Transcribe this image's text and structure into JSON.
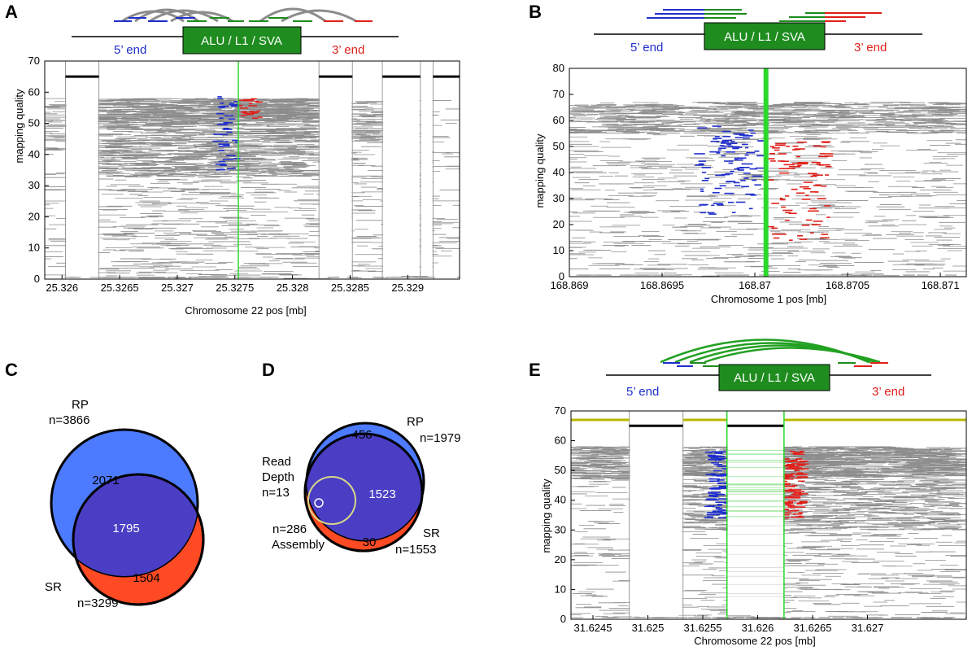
{
  "colors": {
    "read": "#8c8c8c",
    "five_prime": "#1f2ecc",
    "three_prime": "#e0201a",
    "element_green": "#1e8c1e",
    "insertion_line": "#2bd92b",
    "arc_gray": "#8c8c8c",
    "arc_green": "#22a022",
    "venn_rp": "#4d7bff",
    "venn_overlap": "#4a3ec4",
    "venn_sr": "#ff4a23",
    "read_depth_circle": "#d8d888",
    "gap_black": "#000000",
    "gap_yellow": "#b8b800"
  },
  "schematic": {
    "element_label": "ALU / L1 / SVA",
    "five_prime_label": "5’ end",
    "three_prime_label": "3’ end"
  },
  "chart_data": [
    {
      "panel": "A",
      "type": "scatter",
      "xlabel": "Chromosome 22 pos [mb]",
      "ylabel": "mapping quality",
      "xlim": [
        25.32585,
        25.32945
      ],
      "ylim": [
        0,
        70
      ],
      "xticks": [
        "25.326",
        "25.3265",
        "25.327",
        "25.3275",
        "25.328",
        "25.3285",
        "25.329"
      ],
      "xtick_values": [
        25.326,
        25.3265,
        25.327,
        25.3275,
        25.328,
        25.3285,
        25.329
      ],
      "yticks": [
        "0",
        "10",
        "20",
        "30",
        "40",
        "50",
        "60",
        "70"
      ],
      "ytick_values": [
        0,
        10,
        20,
        30,
        40,
        50,
        60,
        70
      ],
      "insertion_x": 25.32753,
      "gap_lines_x": [
        25.32603,
        25.32632,
        25.32823,
        25.32852,
        25.32878,
        25.32911,
        25.32922
      ],
      "gap_bars": [
        [
          25.32632,
          25.32603,
          65
        ],
        [
          25.32823,
          25.32852,
          65
        ],
        [
          25.32878,
          25.32911,
          65
        ],
        [
          25.32922,
          25.32945,
          65
        ]
      ],
      "arcs": "gray",
      "clusters": [
        {
          "x": [
            25.32585,
            25.32603
          ],
          "y": [
            40,
            58
          ],
          "d": 0.45,
          "c": "read"
        },
        {
          "x": [
            25.32632,
            25.32823
          ],
          "y": [
            51,
            58
          ],
          "d": 1.6,
          "c": "read"
        },
        {
          "x": [
            25.32632,
            25.32823
          ],
          "y": [
            33,
            51
          ],
          "d": 0.8,
          "c": "read"
        },
        {
          "x": [
            25.32632,
            25.32823
          ],
          "y": [
            0,
            33
          ],
          "d": 0.18,
          "c": "read"
        },
        {
          "x": [
            25.32585,
            25.32603
          ],
          "y": [
            0,
            40
          ],
          "d": 0.12,
          "c": "read"
        },
        {
          "x": [
            25.32823,
            25.32945
          ],
          "y": [
            0,
            58
          ],
          "d": 0.12,
          "c": "read"
        },
        {
          "x": [
            25.32852,
            25.32878
          ],
          "y": [
            44,
            57
          ],
          "d": 0.6,
          "c": "read"
        },
        {
          "x": [
            25.32735,
            25.32752
          ],
          "y": [
            35,
            59
          ],
          "d": 0.35,
          "c": "five_prime"
        },
        {
          "x": [
            25.32754,
            25.32772
          ],
          "y": [
            51,
            58
          ],
          "d": 0.6,
          "c": "three_prime"
        }
      ]
    },
    {
      "panel": "B",
      "type": "scatter",
      "xlabel": "Chromosome 1 pos [mb]",
      "ylabel": "mapping quality",
      "xlim": [
        168.869,
        168.87114
      ],
      "ylim": [
        0,
        80
      ],
      "xticks": [
        "168.869",
        "168.8695",
        "168.87",
        "168.8705",
        "168.871"
      ],
      "xtick_values": [
        168.869,
        168.8695,
        168.87,
        168.8705,
        168.871
      ],
      "yticks": [
        "0",
        "10",
        "20",
        "30",
        "40",
        "50",
        "60",
        "70",
        "80"
      ],
      "ytick_values": [
        0,
        10,
        20,
        30,
        40,
        50,
        60,
        70,
        80
      ],
      "insertion_x": 168.87006,
      "clusters": [
        {
          "x": [
            168.869,
            168.87114
          ],
          "y": [
            55,
            67
          ],
          "d": 0.7,
          "c": "read"
        },
        {
          "x": [
            168.869,
            168.87114
          ],
          "y": [
            0,
            55
          ],
          "d": 0.12,
          "c": "read"
        },
        {
          "x": [
            168.8697,
            168.87004
          ],
          "y": [
            24,
            58
          ],
          "d": 0.22,
          "c": "five_prime"
        },
        {
          "x": [
            168.87008,
            168.8704
          ],
          "y": [
            14,
            52
          ],
          "d": 0.18,
          "c": "three_prime"
        }
      ]
    },
    {
      "panel": "E",
      "type": "scatter",
      "xlabel": "Chromosome 22 pos [mb]",
      "ylabel": "mapping quality",
      "xlim": [
        31.6243,
        31.6279
      ],
      "ylim": [
        0,
        70
      ],
      "xticks": [
        "31.6245",
        "31.625",
        "31.6255",
        "31.626",
        "31.6265",
        "31.627"
      ],
      "xtick_values": [
        31.6245,
        31.625,
        31.6255,
        31.626,
        31.6265,
        31.627
      ],
      "yticks": [
        "0",
        "10",
        "20",
        "30",
        "40",
        "50",
        "60",
        "70"
      ],
      "ytick_values": [
        0,
        10,
        20,
        30,
        40,
        50,
        60,
        70
      ],
      "insertion_x": [
        31.62572,
        31.62624
      ],
      "gap_lines_x": [
        31.62483,
        31.62532,
        31.62572,
        31.62624
      ],
      "arcs": "green",
      "clusters": [
        {
          "x": [
            31.6243,
            31.62483
          ],
          "y": [
            47,
            58
          ],
          "d": 1.2,
          "c": "read"
        },
        {
          "x": [
            31.62532,
            31.6279
          ],
          "y": [
            48,
            58
          ],
          "d": 1.4,
          "c": "read"
        },
        {
          "x": [
            31.62532,
            31.6279
          ],
          "y": [
            30,
            48
          ],
          "d": 0.55,
          "c": "read"
        },
        {
          "x": [
            31.62532,
            31.6279
          ],
          "y": [
            0,
            30
          ],
          "d": 0.15,
          "c": "read"
        },
        {
          "x": [
            31.6243,
            31.62483
          ],
          "y": [
            0,
            47
          ],
          "d": 0.12,
          "c": "read"
        },
        {
          "x": [
            31.62555,
            31.62572
          ],
          "y": [
            34,
            57
          ],
          "d": 0.9,
          "c": "five_prime"
        },
        {
          "x": [
            31.62624,
            31.62643
          ],
          "y": [
            34,
            57
          ],
          "d": 0.9,
          "c": "three_prime"
        }
      ]
    }
  ],
  "venn": [
    {
      "panel": "C",
      "type": "venn",
      "sets": [
        {
          "name": "RP",
          "n_label": "n=3866",
          "unique": "2071"
        },
        {
          "name": "SR",
          "n_label": "n=3299",
          "unique": "1504"
        }
      ],
      "overlap": "1795"
    },
    {
      "panel": "D",
      "type": "venn",
      "sets": [
        {
          "name": "RP",
          "n_label": "n=1979",
          "unique": "456"
        },
        {
          "name": "SR",
          "n_label": "n=1553",
          "unique": "30"
        }
      ],
      "overlap": "1523",
      "read_depth": {
        "label_line1": "Read",
        "label_line2": "Depth",
        "n_label": "n=13"
      },
      "assembly": {
        "name": "Assembly",
        "n_label": "n=286"
      }
    }
  ]
}
